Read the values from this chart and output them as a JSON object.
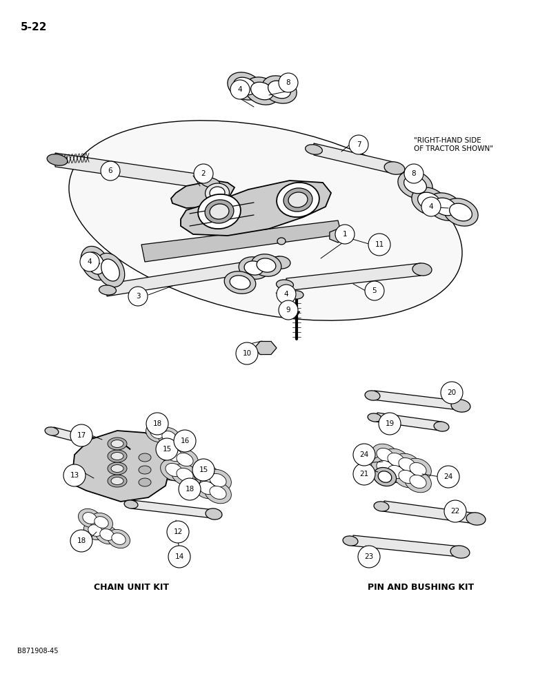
{
  "page_number": "5-22",
  "doc_code": "B871908-45",
  "background_color": "#ffffff",
  "label_chain_unit_kit": "CHAIN UNIT KIT",
  "label_pin_bushing_kit": "PIN AND BUSHING KIT",
  "right_hand_note": "\"RIGHT-HAND SIDE\nOF TRACTOR SHOWN\"",
  "figsize": [
    7.8,
    10.0
  ],
  "dpi": 100
}
